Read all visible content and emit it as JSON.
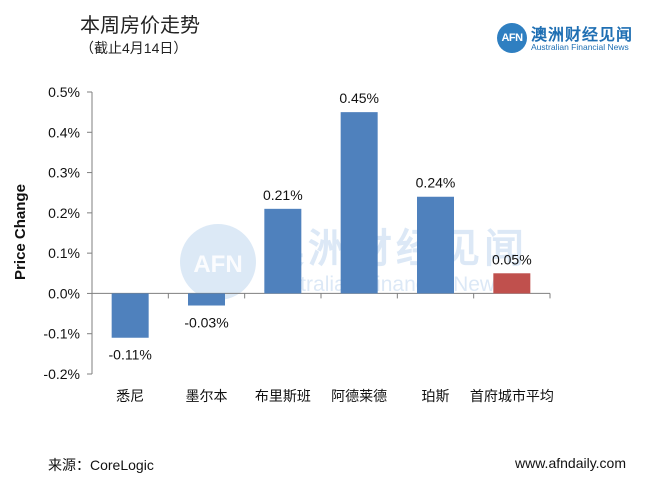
{
  "header": {
    "title": "本周房价走势",
    "subtitle": "（截止4月14日）"
  },
  "logo": {
    "mark": "AFN",
    "name_cn": "澳洲财经见闻",
    "name_en": "Australian Financial News"
  },
  "watermark": {
    "mark": "AFN",
    "name_cn": "澳洲财经见闻",
    "name_en": "Australian Financial News"
  },
  "footer": {
    "source": "来源：CoreLogic",
    "site": "www.afndaily.com"
  },
  "colors": {
    "positive_bar": "#4f81bd",
    "highlight_bar": "#c0504d"
  },
  "chart_data": {
    "type": "bar",
    "ylabel": "Price Change",
    "xlabel": "",
    "ylim": [
      -0.2,
      0.5
    ],
    "yticks": [
      0.5,
      0.4,
      0.3,
      0.2,
      0.1,
      0.0,
      -0.1,
      -0.2
    ],
    "ytick_labels": [
      "0.5%",
      "0.4%",
      "0.3%",
      "0.2%",
      "0.1%",
      "0.0%",
      "-0.1%",
      "-0.2%"
    ],
    "categories": [
      "悉尼",
      "墨尔本",
      "布里斯班",
      "阿德莱德",
      "珀斯",
      "首府城市平均"
    ],
    "values": [
      -0.11,
      -0.03,
      0.21,
      0.45,
      0.24,
      0.05
    ],
    "data_labels": [
      "-0.11%",
      "-0.03%",
      "0.21%",
      "0.45%",
      "0.24%",
      "0.05%"
    ],
    "bar_colors": [
      "#4f81bd",
      "#4f81bd",
      "#4f81bd",
      "#4f81bd",
      "#4f81bd",
      "#c0504d"
    ],
    "grid": false,
    "legend": "none"
  }
}
